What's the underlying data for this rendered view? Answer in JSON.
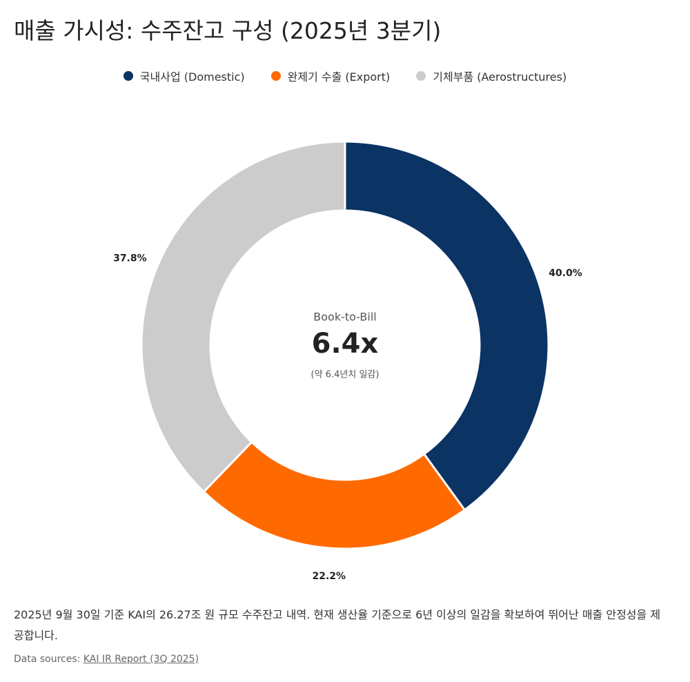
{
  "chart_data": {
    "type": "pie",
    "title": "매출 가시성: 수주잔고 구성 (2025년 3분기)",
    "categories": [
      "국내사업 (Domestic)",
      "완제기 수출 (Export)",
      "기체부품 (Aerostructures)"
    ],
    "values": [
      40.0,
      22.2,
      37.8
    ],
    "value_labels": [
      "40.0%",
      "22.2%",
      "37.8%"
    ],
    "colors": [
      "#0b3363",
      "#ff6a00",
      "#cccccc"
    ],
    "donut": true,
    "center_label": "Book-to-Bill",
    "center_value": "6.4x",
    "center_note": "(약 6.4년치 일감)"
  },
  "description": "2025년 9월 30일 기준 KAI의 26.27조 원 규모 수주잔고 내역. 현재 생산율 기준으로 6년 이상의 일감을 확보하여 뛰어난 매출 안정성을 제공합니다.",
  "source_prefix": "Data sources:",
  "source_link": "KAI IR Report (3Q 2025)"
}
